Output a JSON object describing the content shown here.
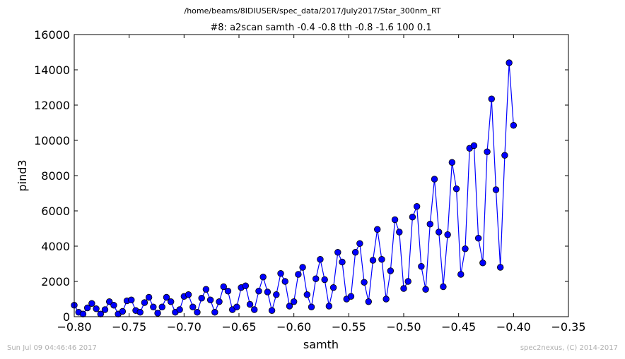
{
  "chart_data": {
    "type": "line",
    "supertitle": "/home/beams/8IDIUSER/spec_data/2017/July2017/Star_300nm_RT",
    "title": "#8: a2scan  samth -0.4 -0.8  tth -0.8 -1.6  100 0.1",
    "xlabel": "samth",
    "ylabel": "pind3",
    "xlim": [
      -0.8,
      -0.35
    ],
    "ylim": [
      0,
      16000
    ],
    "xticks": [
      -0.8,
      -0.75,
      -0.7,
      -0.65,
      -0.6,
      -0.55,
      -0.5,
      -0.45,
      -0.4,
      -0.35
    ],
    "xtick_labels": [
      "−0.80",
      "−0.75",
      "−0.70",
      "−0.65",
      "−0.60",
      "−0.55",
      "−0.50",
      "−0.45",
      "−0.40",
      "−0.35"
    ],
    "yticks": [
      0,
      2000,
      4000,
      6000,
      8000,
      10000,
      12000,
      14000,
      16000
    ],
    "ytick_labels": [
      "0",
      "2000",
      "4000",
      "6000",
      "8000",
      "10000",
      "12000",
      "14000",
      "16000"
    ],
    "grid": false,
    "series": [
      {
        "color": "#0000ff",
        "marker": "circle",
        "x": [
          -0.8,
          -0.796,
          -0.792,
          -0.788,
          -0.784,
          -0.78,
          -0.776,
          -0.772,
          -0.768,
          -0.764,
          -0.76,
          -0.756,
          -0.752,
          -0.748,
          -0.744,
          -0.74,
          -0.736,
          -0.732,
          -0.728,
          -0.724,
          -0.72,
          -0.716,
          -0.712,
          -0.708,
          -0.704,
          -0.7,
          -0.696,
          -0.692,
          -0.688,
          -0.684,
          -0.68,
          -0.676,
          -0.672,
          -0.668,
          -0.664,
          -0.66,
          -0.656,
          -0.652,
          -0.648,
          -0.644,
          -0.64,
          -0.636,
          -0.632,
          -0.628,
          -0.624,
          -0.62,
          -0.616,
          -0.612,
          -0.608,
          -0.604,
          -0.6,
          -0.596,
          -0.592,
          -0.588,
          -0.584,
          -0.58,
          -0.576,
          -0.572,
          -0.568,
          -0.564,
          -0.56,
          -0.556,
          -0.552,
          -0.548,
          -0.544,
          -0.54,
          -0.536,
          -0.532,
          -0.528,
          -0.524,
          -0.52,
          -0.516,
          -0.512,
          -0.508,
          -0.504,
          -0.5,
          -0.496,
          -0.492,
          -0.488,
          -0.484,
          -0.48,
          -0.476,
          -0.472,
          -0.468,
          -0.464,
          -0.46,
          -0.456,
          -0.452,
          -0.448,
          -0.444,
          -0.44,
          -0.436,
          -0.432,
          -0.428,
          -0.424,
          -0.42,
          -0.416,
          -0.412,
          -0.408,
          -0.404,
          -0.4
        ],
        "y": [
          650,
          250,
          150,
          500,
          750,
          450,
          150,
          400,
          850,
          650,
          150,
          300,
          900,
          950,
          350,
          250,
          800,
          1100,
          550,
          200,
          550,
          1100,
          850,
          250,
          400,
          1150,
          1250,
          550,
          250,
          1050,
          1550,
          950,
          250,
          850,
          1700,
          1450,
          400,
          550,
          1650,
          1750,
          700,
          400,
          1450,
          2250,
          1400,
          350,
          1250,
          2450,
          2000,
          600,
          850,
          2400,
          2800,
          1250,
          550,
          2150,
          3250,
          2100,
          600,
          1650,
          3650,
          3100,
          1000,
          1150,
          3650,
          4150,
          1950,
          850,
          3200,
          4950,
          3250,
          1000,
          2600,
          5500,
          4800,
          1600,
          2000,
          5650,
          6250,
          2850,
          1550,
          5250,
          7800,
          4800,
          1700,
          4650,
          8750,
          7250,
          2400,
          3850,
          9550,
          9700,
          4450,
          3050,
          9350,
          12350,
          7200,
          2800,
          9150,
          14400,
          10850
        ]
      }
    ]
  },
  "footer": {
    "timestamp": "Sun Jul 09 04:46:46 2017",
    "credit": "spec2nexus, (C) 2014-2017"
  }
}
